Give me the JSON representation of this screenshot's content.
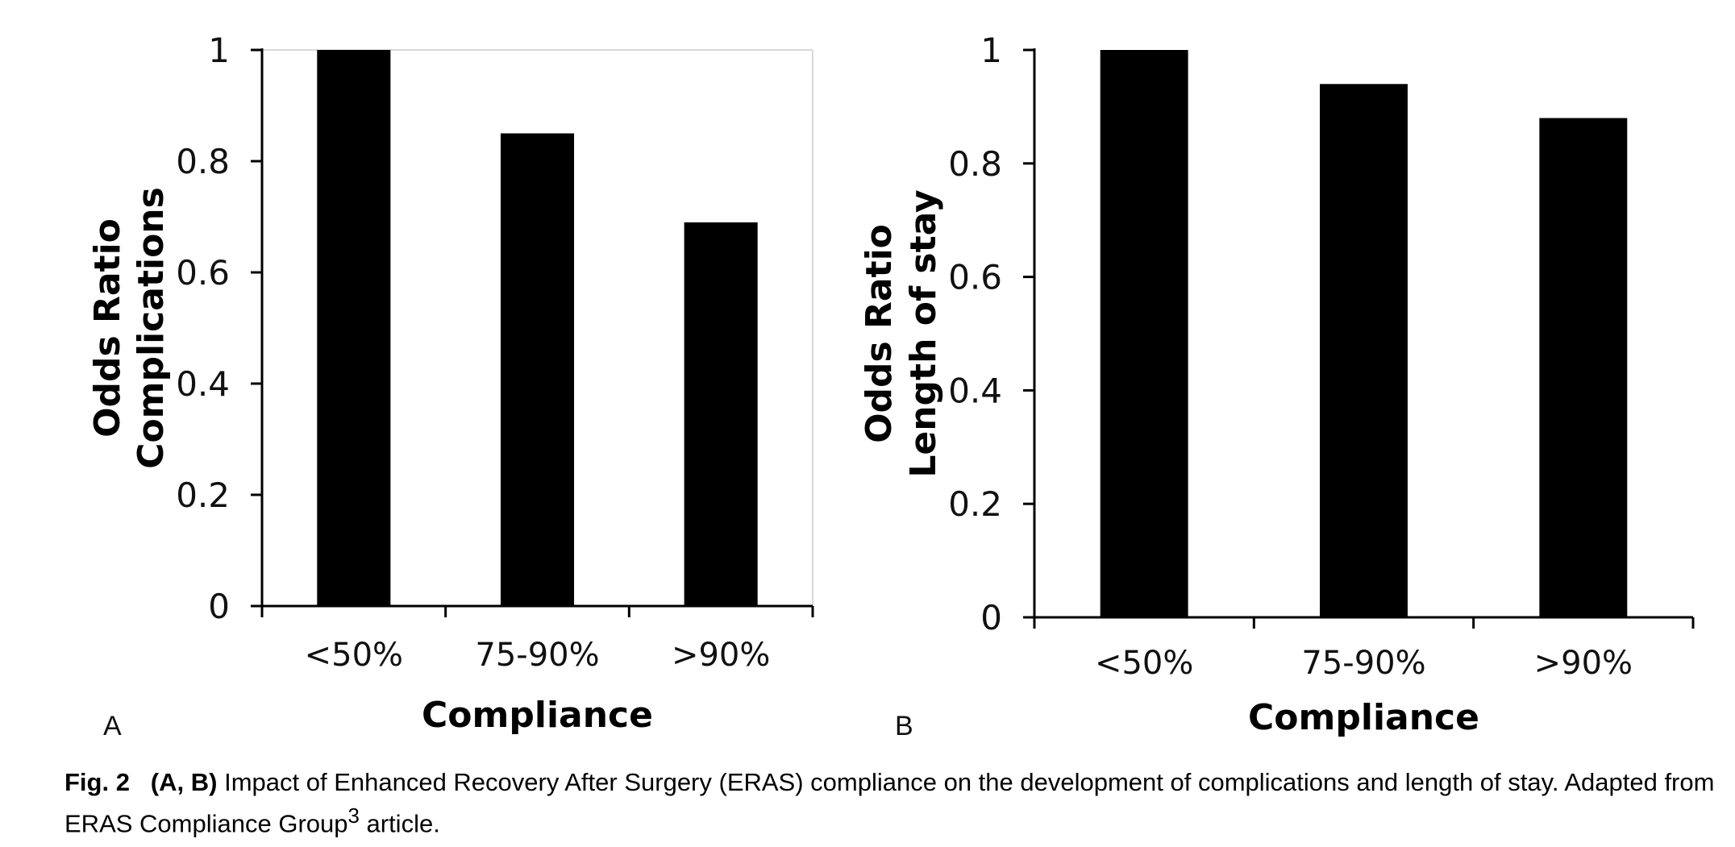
{
  "chart_data": [
    {
      "panel_label": "A",
      "type": "bar",
      "categories": [
        "<50%",
        "75-90%",
        ">90%"
      ],
      "values": [
        1.0,
        0.85,
        0.69
      ],
      "xlabel": "Compliance",
      "ylabel_line1": "Odds Ratio",
      "ylabel_line2": "Complications",
      "ylim": [
        0,
        1
      ],
      "yticks": [
        "0",
        "0.2",
        "0.4",
        "0.6",
        "0.8",
        "1"
      ],
      "bar_color": "#000000"
    },
    {
      "panel_label": "B",
      "type": "bar",
      "categories": [
        "<50%",
        "75-90%",
        ">90%"
      ],
      "values": [
        1.0,
        0.94,
        0.88
      ],
      "xlabel": "Compliance",
      "ylabel_line1": "Odds Ratio",
      "ylabel_line2": "Length of stay",
      "ylim": [
        0,
        1
      ],
      "yticks": [
        "0",
        "0.2",
        "0.4",
        "0.6",
        "0.8",
        "1"
      ],
      "bar_color": "#000000"
    }
  ],
  "caption": {
    "fig_label": "Fig. 2",
    "panel_refs": "(A, B)",
    "text_main": "Impact of Enhanced Recovery After Surgery (ERAS) compliance on the development of complications and length of stay. Adapted from ERAS Compliance Group",
    "superscript": "3",
    "text_end": "article."
  }
}
